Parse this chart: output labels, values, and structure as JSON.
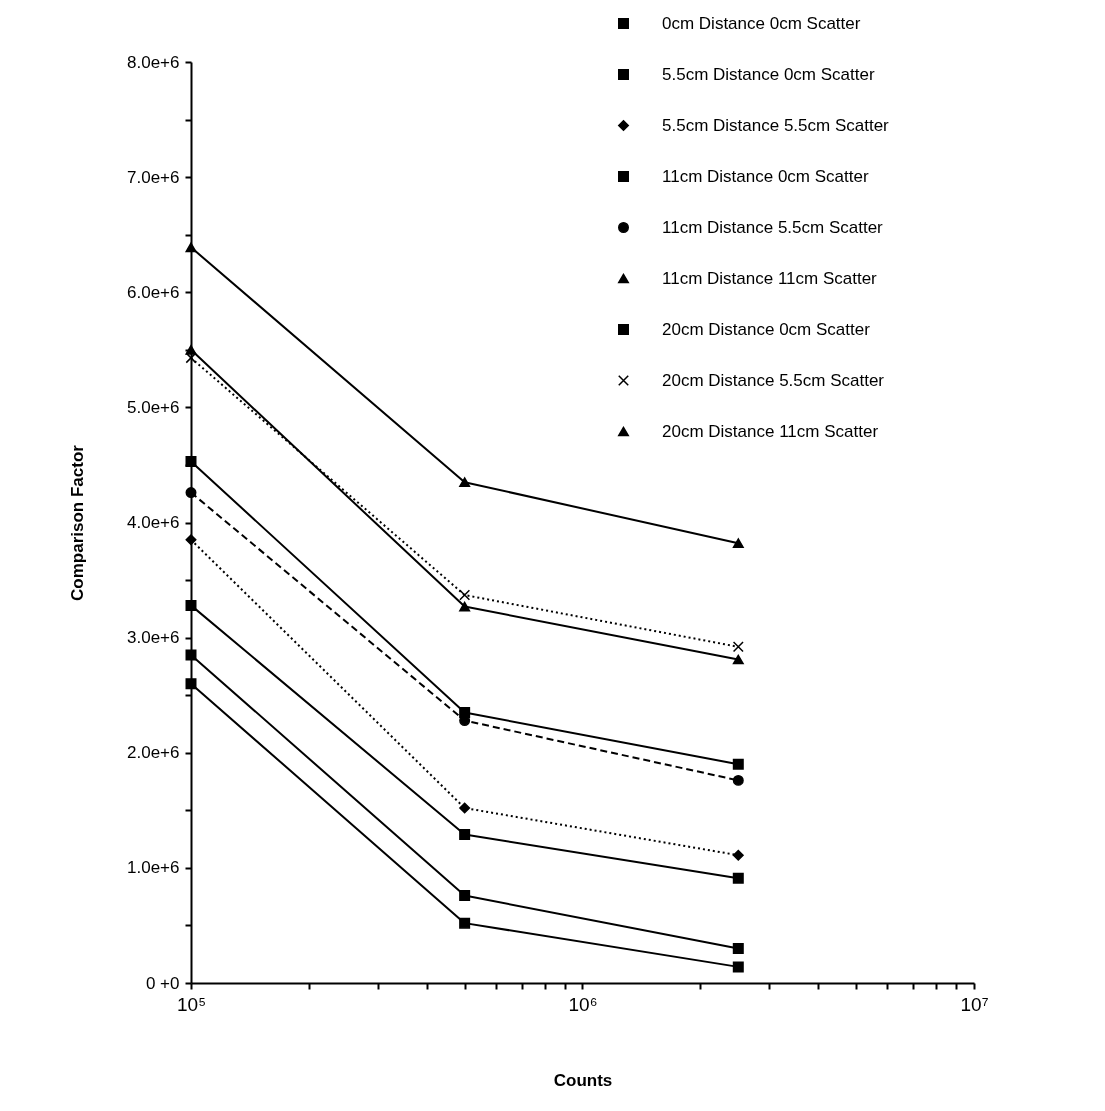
{
  "chart_data": {
    "type": "line",
    "xlabel": "Counts",
    "ylabel": "Comparison  Factor",
    "log": "x",
    "legend": "top right",
    "x": [
      100000,
      500000,
      2500000
    ],
    "xlim": [
      100000,
      10000000
    ],
    "xticks": [
      {
        "value": 100000,
        "label": "10⁵"
      },
      {
        "value": 200000,
        "label": null
      },
      {
        "value": 300000,
        "label": null
      },
      {
        "value": 400000,
        "label": null
      },
      {
        "value": 500000,
        "label": null
      },
      {
        "value": 600000,
        "label": null
      },
      {
        "value": 700000,
        "label": null
      },
      {
        "value": 800000,
        "label": null
      },
      {
        "value": 900000,
        "label": null
      },
      {
        "value": 1000000,
        "label": "10⁶"
      },
      {
        "value": 2000000,
        "label": null
      },
      {
        "value": 3000000,
        "label": null
      },
      {
        "value": 4000000,
        "label": null
      },
      {
        "value": 5000000,
        "label": null
      },
      {
        "value": 6000000,
        "label": null
      },
      {
        "value": 7000000,
        "label": null
      },
      {
        "value": 8000000,
        "label": null
      },
      {
        "value": 9000000,
        "label": null
      },
      {
        "value": 10000000,
        "label": "10⁷"
      }
    ],
    "ylim": [
      0,
      8000000
    ],
    "yticks": [
      {
        "value": 0,
        "label": "0  +0"
      },
      {
        "value": 500000,
        "label": null
      },
      {
        "value": 1000000,
        "label": "1.0e+6"
      },
      {
        "value": 1500000,
        "label": null
      },
      {
        "value": 2000000,
        "label": "2.0e+6"
      },
      {
        "value": 2500000,
        "label": null
      },
      {
        "value": 3000000,
        "label": "3.0e+6"
      },
      {
        "value": 3500000,
        "label": null
      },
      {
        "value": 4000000,
        "label": "4.0e+6"
      },
      {
        "value": 4500000,
        "label": null
      },
      {
        "value": 5000000,
        "label": "5.0e+6"
      },
      {
        "value": 5500000,
        "label": null
      },
      {
        "value": 6000000,
        "label": "6.0e+6"
      },
      {
        "value": 6500000,
        "label": null
      },
      {
        "value": 7000000,
        "label": "7.0e+6"
      },
      {
        "value": 7500000,
        "label": null
      },
      {
        "value": 8000000,
        "label": "8.0e+6"
      }
    ],
    "series": [
      {
        "name": "0cm Distance  0cm Scatter",
        "color": "#000000",
        "marker": "square",
        "line_style": "solid",
        "values": [
          2600000,
          520000,
          140000
        ]
      },
      {
        "name": "5.5cm Distance  0cm Scatter",
        "color": "#000000",
        "marker": "square",
        "line_style": "solid",
        "values": [
          2850000,
          760000,
          300000
        ]
      },
      {
        "name": "5.5cm Distance  5.5cm Scatter",
        "color": "#000000",
        "marker": "diamond",
        "line_style": "dotted",
        "values": [
          3850000,
          1520000,
          1110000
        ]
      },
      {
        "name": "11cm Distance  0cm Scatter",
        "color": "#000000",
        "marker": "square",
        "line_style": "solid",
        "values": [
          3280000,
          1290000,
          910000
        ]
      },
      {
        "name": "11cm Distance  5.5cm Scatter",
        "color": "#000000",
        "marker": "circle",
        "line_style": "dashed",
        "values": [
          4260000,
          2280000,
          1760000
        ]
      },
      {
        "name": "11cm Distance  11cm Scatter",
        "color": "#000000",
        "marker": "triangle",
        "line_style": "solid",
        "values": [
          5500000,
          3270000,
          2810000
        ]
      },
      {
        "name": "20cm Distance  0cm Scatter",
        "color": "#000000",
        "marker": "square",
        "line_style": "solid",
        "values": [
          4530000,
          2350000,
          1900000
        ]
      },
      {
        "name": "20cm Distance  5.5cm Scatter",
        "color": "#000000",
        "marker": "cross",
        "line_style": "dotted",
        "values": [
          5430000,
          3370000,
          2920000
        ]
      },
      {
        "name": "20cm Distance  11cm Scatter",
        "color": "#000000",
        "marker": "triangle",
        "line_style": "solid",
        "values": [
          6390000,
          4350000,
          3820000
        ]
      }
    ]
  }
}
